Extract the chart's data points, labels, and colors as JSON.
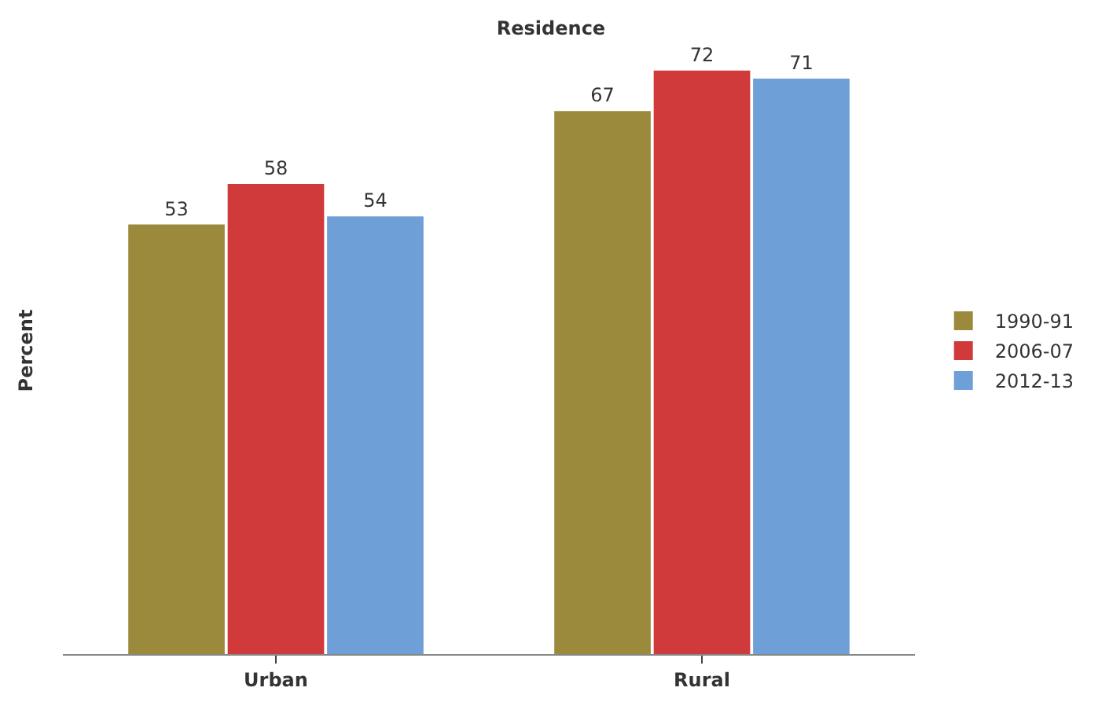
{
  "chart_data": {
    "type": "bar",
    "title": "Residence",
    "ylabel": "Percent",
    "categories": [
      "Urban",
      "Rural"
    ],
    "series": [
      {
        "name": "1990-91",
        "color": "#9c8a3c",
        "values": [
          53,
          67
        ]
      },
      {
        "name": "2006-07",
        "color": "#d13a3a",
        "values": [
          58,
          72
        ]
      },
      {
        "name": "2012-13",
        "color": "#6e9fd6",
        "values": [
          54,
          71
        ]
      }
    ],
    "data_labels": true,
    "legend": "right"
  }
}
